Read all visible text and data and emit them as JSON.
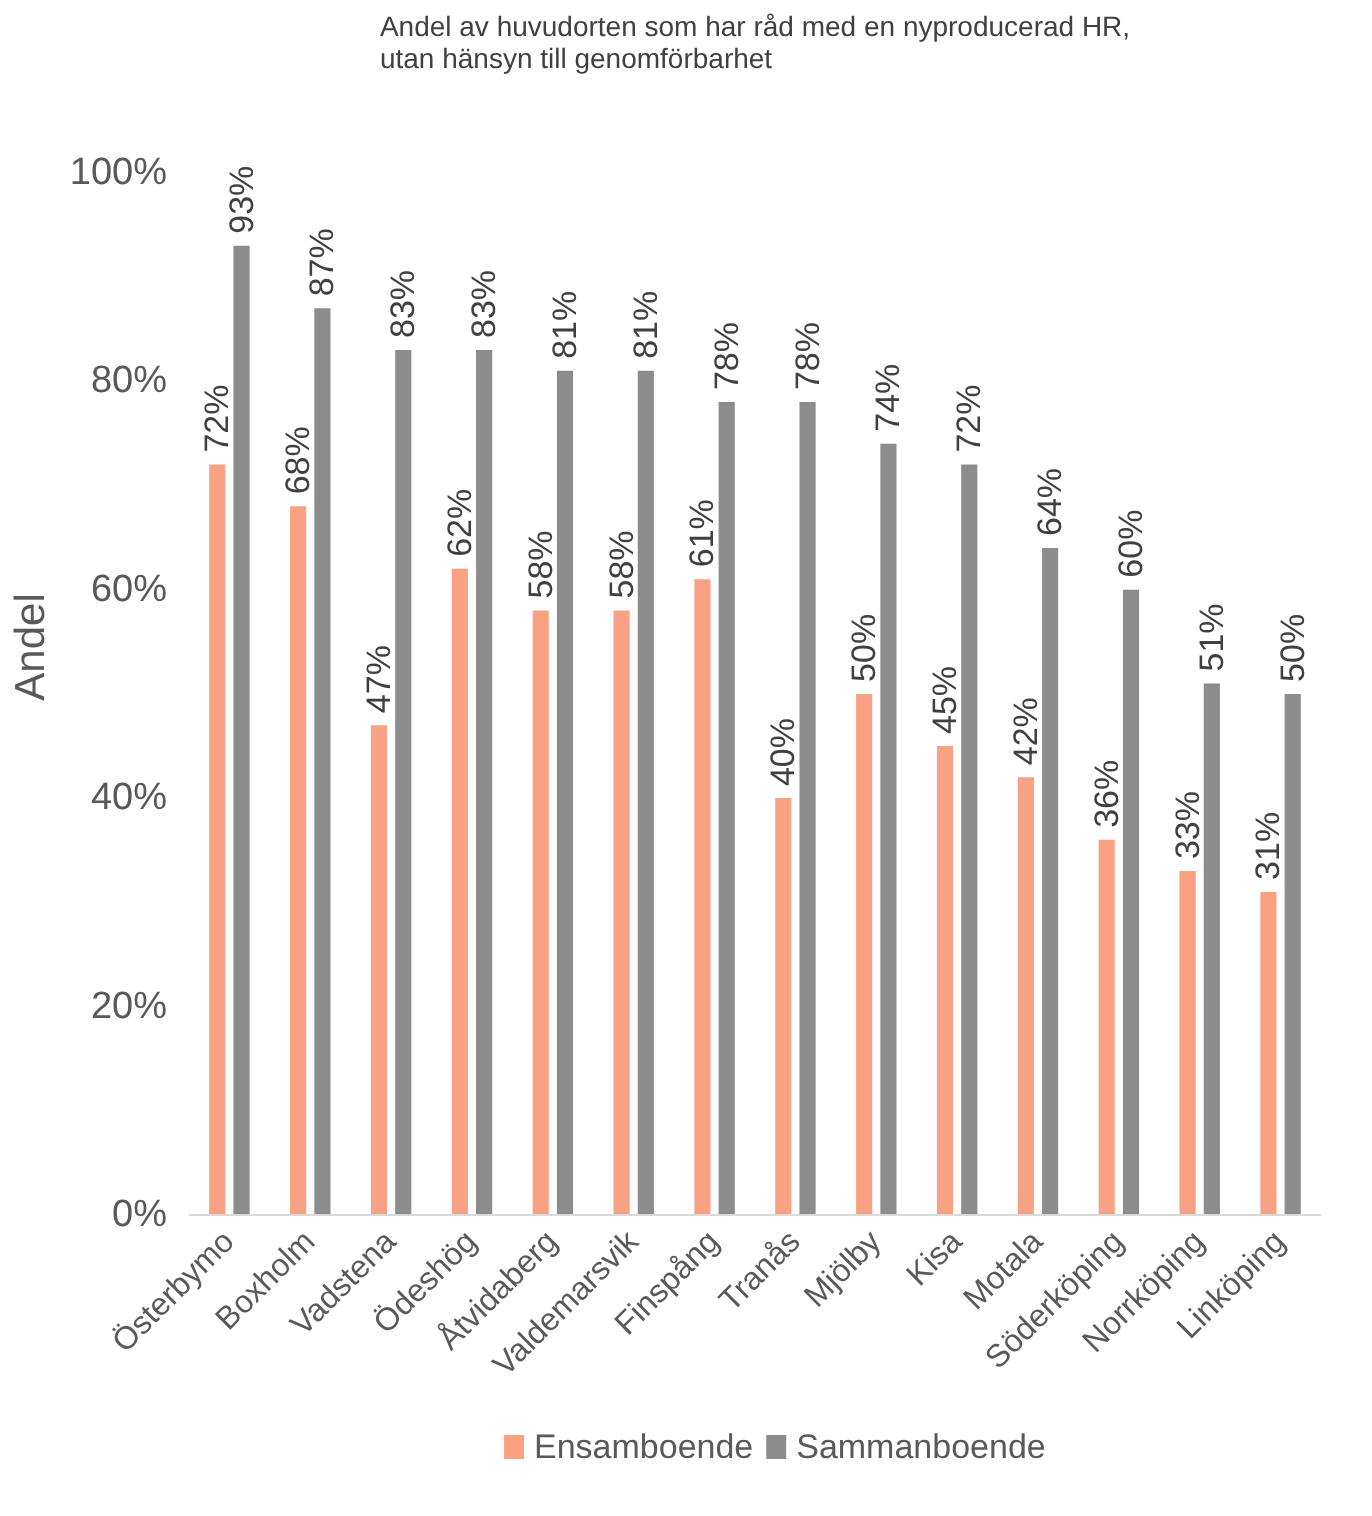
{
  "chart_data": {
    "type": "bar",
    "title": "Andel av huvudorten som har råd med en nyproducerad HR,\nutan hänsyn till genomförbarhet",
    "ylabel": "Andel",
    "categories": [
      "Österbymo",
      "Boxholm",
      "Vadstena",
      "Ödeshög",
      "Åtvidaberg",
      "Valdemarsvik",
      "Finspång",
      "Tranås",
      "Mjölby",
      "Kisa",
      "Motala",
      "Söderköping",
      "Norrköping",
      "Linköping"
    ],
    "series": [
      {
        "name": "Ensamboende",
        "color": "#f9a283",
        "values": [
          72,
          68,
          47,
          62,
          58,
          58,
          61,
          40,
          50,
          45,
          42,
          36,
          33,
          31
        ],
        "value_labels": [
          "72%",
          "68%",
          "47%",
          "62%",
          "58%",
          "58%",
          "61%",
          "40%",
          "50%",
          "45%",
          "42%",
          "36%",
          "33%",
          "31%"
        ]
      },
      {
        "name": "Sammanboende",
        "color": "#8c8c8c",
        "values": [
          93,
          87,
          83,
          83,
          81,
          81,
          78,
          78,
          74,
          72,
          64,
          60,
          51,
          50
        ],
        "value_labels": [
          "93%",
          "87%",
          "83%",
          "83%",
          "81%",
          "81%",
          "78%",
          "78%",
          "74%",
          "72%",
          "64%",
          "60%",
          "51%",
          "50%"
        ]
      }
    ],
    "ylim": [
      0,
      100
    ],
    "yticks": [
      {
        "value": 0,
        "label": "0%"
      },
      {
        "value": 20,
        "label": "20%"
      },
      {
        "value": 40,
        "label": "40%"
      },
      {
        "value": 60,
        "label": "60%"
      },
      {
        "value": 80,
        "label": "80%"
      },
      {
        "value": 100,
        "label": "100%"
      }
    ],
    "data_labels": true,
    "grid": false,
    "legend": "bottom"
  }
}
